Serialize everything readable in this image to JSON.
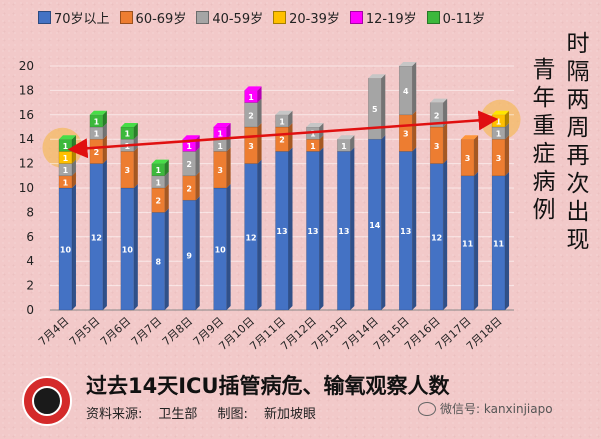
{
  "chart_data": {
    "type": "bar",
    "stacked": true,
    "categories": [
      "7月4日",
      "7月5日",
      "7月6日",
      "7月7日",
      "7月8日",
      "7月9日",
      "7月10日",
      "7月11日",
      "7月12日",
      "7月13日",
      "7月14日",
      "7月15日",
      "7月16日",
      "7月17日",
      "7月18日"
    ],
    "series": [
      {
        "name": "70岁以上",
        "color": "#4472c4",
        "values": [
          10,
          12,
          10,
          8,
          9,
          10,
          12,
          13,
          13,
          13,
          14,
          13,
          12,
          11,
          11
        ]
      },
      {
        "name": "60-69岁",
        "color": "#ed7d31",
        "values": [
          1,
          2,
          3,
          2,
          2,
          3,
          3,
          2,
          1,
          0,
          0,
          3,
          3,
          3,
          3
        ]
      },
      {
        "name": "40-59岁",
        "color": "#a5a5a5",
        "values": [
          1,
          1,
          1,
          1,
          2,
          1,
          2,
          1,
          1,
          1,
          5,
          4,
          2,
          0,
          1
        ]
      },
      {
        "name": "20-39岁",
        "color": "#ffc000",
        "values": [
          1,
          0,
          0,
          0,
          0,
          0,
          0,
          0,
          0,
          0,
          0,
          0,
          0,
          0,
          1
        ]
      },
      {
        "name": "12-19岁",
        "color": "#ff00ff",
        "values": [
          0,
          0,
          0,
          0,
          1,
          1,
          1,
          0,
          0,
          0,
          0,
          0,
          0,
          0,
          0
        ]
      },
      {
        "name": "0-11岁",
        "color": "#3cb83c",
        "values": [
          1,
          1,
          1,
          1,
          0,
          0,
          0,
          0,
          0,
          0,
          0,
          0,
          0,
          0,
          0
        ]
      }
    ],
    "ylim": [
      0,
      20
    ],
    "yticks": [
      0,
      2,
      4,
      6,
      8,
      10,
      12,
      14,
      16,
      18,
      20
    ],
    "grid": true,
    "legend_position": "top",
    "annotation": {
      "type": "arrow",
      "from_category": "7月4日",
      "to_category": "7月18日",
      "color": "#e01010",
      "highlight_color": "#f5b84a"
    }
  },
  "side_note_left": "青年重症病例",
  "side_note_right": "时隔两周再次出现",
  "footer": {
    "title": "过去14天ICU插管病危、输氧观察人数",
    "source_label": "资料来源:",
    "source_value": "卫生部",
    "maker_label": "制图:",
    "maker_value": "新加坡眼",
    "watermark": "微信号: kanxinjiapo"
  }
}
